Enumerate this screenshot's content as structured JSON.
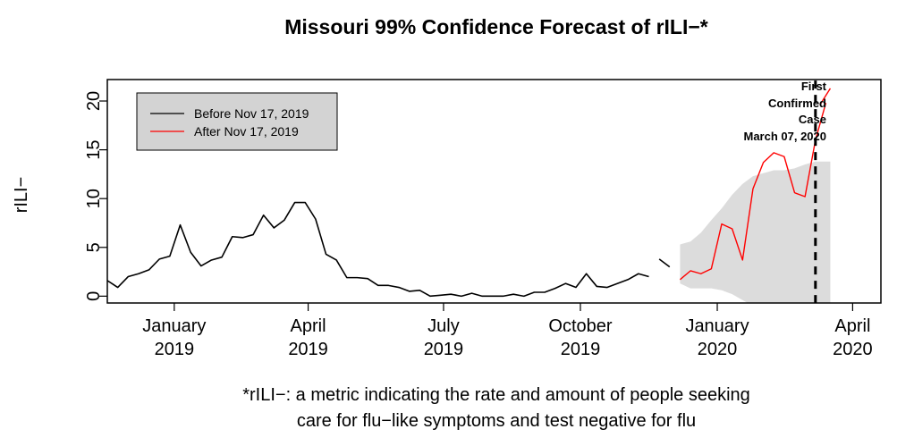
{
  "chart_data": {
    "type": "line",
    "title": "Missouri 99% Confidence Forecast of rILI−*",
    "ylabel": "rILI−",
    "xlabel": "",
    "ylim": [
      0,
      21
    ],
    "xlim": [
      "2018-11-17",
      "2020-04-20"
    ],
    "grid": false,
    "legend_position": "top-left",
    "y_ticks": [
      0,
      5,
      10,
      15,
      20
    ],
    "x_ticks": [
      {
        "date": "2019-01-01",
        "label1": "January",
        "label2": "2019"
      },
      {
        "date": "2019-04-01",
        "label1": "April",
        "label2": "2019"
      },
      {
        "date": "2019-07-01",
        "label1": "July",
        "label2": "2019"
      },
      {
        "date": "2019-10-01",
        "label1": "October",
        "label2": "2019"
      },
      {
        "date": "2020-01-01",
        "label1": "January",
        "label2": "2020"
      },
      {
        "date": "2020-04-01",
        "label1": "April",
        "label2": "2020"
      }
    ],
    "series": [
      {
        "name": "Before Nov 17, 2019",
        "color": "#000000",
        "x": [
          "2018-11-17",
          "2018-11-24",
          "2018-12-01",
          "2018-12-08",
          "2018-12-15",
          "2018-12-22",
          "2018-12-29",
          "2019-01-05",
          "2019-01-12",
          "2019-01-19",
          "2019-01-26",
          "2019-02-02",
          "2019-02-09",
          "2019-02-16",
          "2019-02-23",
          "2019-03-02",
          "2019-03-09",
          "2019-03-16",
          "2019-03-23",
          "2019-03-30",
          "2019-04-06",
          "2019-04-13",
          "2019-04-20",
          "2019-04-27",
          "2019-05-04",
          "2019-05-11",
          "2019-05-18",
          "2019-05-25",
          "2019-06-01",
          "2019-06-08",
          "2019-06-15",
          "2019-06-22",
          "2019-06-29",
          "2019-07-06",
          "2019-07-13",
          "2019-07-20",
          "2019-07-27",
          "2019-08-03",
          "2019-08-10",
          "2019-08-17",
          "2019-08-24",
          "2019-08-31",
          "2019-09-07",
          "2019-09-14",
          "2019-09-21",
          "2019-09-28",
          "2019-10-05",
          "2019-10-12",
          "2019-10-19",
          "2019-10-26",
          "2019-11-02",
          "2019-11-09",
          "2019-11-16"
        ],
        "values": [
          1.6,
          0.9,
          2.0,
          2.3,
          2.7,
          3.8,
          4.1,
          7.3,
          4.5,
          3.1,
          3.7,
          4.0,
          6.1,
          6.0,
          6.3,
          8.3,
          7.0,
          7.8,
          9.6,
          9.6,
          7.9,
          4.3,
          3.7,
          1.9,
          1.9,
          1.8,
          1.1,
          1.1,
          0.9,
          0.5,
          0.6,
          0.0,
          0.1,
          0.2,
          0.0,
          0.3,
          0.0,
          0.0,
          0.0,
          0.2,
          0.0,
          0.4,
          0.4,
          0.8,
          1.3,
          0.9,
          2.3,
          1.0,
          0.9,
          1.3,
          1.7,
          2.3,
          2.0
        ]
      },
      {
        "name": "",
        "color": "#000000",
        "x": [
          "2019-11-23",
          "2019-11-30"
        ],
        "values": [
          3.8,
          3.0
        ]
      },
      {
        "name": "After Nov 17, 2019",
        "color": "#ff0000",
        "x": [
          "2019-12-07",
          "2019-12-14",
          "2019-12-21",
          "2019-12-28",
          "2020-01-04",
          "2020-01-11",
          "2020-01-18",
          "2020-01-25",
          "2020-02-01",
          "2020-02-08",
          "2020-02-15",
          "2020-02-22",
          "2020-02-29",
          "2020-03-07",
          "2020-03-14"
        ],
        "values": [
          1.7,
          2.6,
          2.3,
          2.8,
          7.4,
          6.9,
          3.7,
          11.0,
          13.7,
          14.7,
          14.3,
          10.6,
          10.2,
          16.0,
          19.8
        ]
      },
      {
        "name": "",
        "color": "#ff0000",
        "x": [
          "2020-03-10",
          "2020-03-17"
        ],
        "values": [
          19.6,
          21.3
        ]
      }
    ],
    "confidence_band": {
      "color": "#dcdcdc",
      "x": [
        "2019-12-07",
        "2019-12-14",
        "2019-12-21",
        "2019-12-28",
        "2020-01-04",
        "2020-01-11",
        "2020-01-18",
        "2020-01-25",
        "2020-02-01",
        "2020-02-08",
        "2020-02-15",
        "2020-02-22",
        "2020-02-29",
        "2020-03-07",
        "2020-03-14",
        "2020-03-17"
      ],
      "upper": [
        5.3,
        5.6,
        6.5,
        7.8,
        9.0,
        10.4,
        11.5,
        12.3,
        12.6,
        12.9,
        12.9,
        13.1,
        13.5,
        13.8,
        13.8,
        13.8
      ],
      "lower": [
        1.3,
        0.8,
        0.8,
        0.8,
        0.6,
        0.2,
        -0.4,
        -1.0,
        -1.0,
        -1.0,
        -1.0,
        -1.0,
        -1.0,
        -1.0,
        -1.0,
        -1.0
      ]
    },
    "vline": {
      "date": "2020-03-07",
      "style": "dashed",
      "color": "#000000"
    },
    "annotation": {
      "lines": [
        "First",
        "Confirmed",
        "Case",
        "March 07, 2020"
      ]
    },
    "legend": [
      {
        "label": "Before Nov 17, 2019",
        "color": "#000000"
      },
      {
        "label": "After Nov 17, 2019",
        "color": "#ff0000"
      }
    ],
    "caption": [
      "*rILI−: a metric indicating the rate and amount of people seeking",
      "care for flu−like symptoms and test negative for flu"
    ]
  }
}
